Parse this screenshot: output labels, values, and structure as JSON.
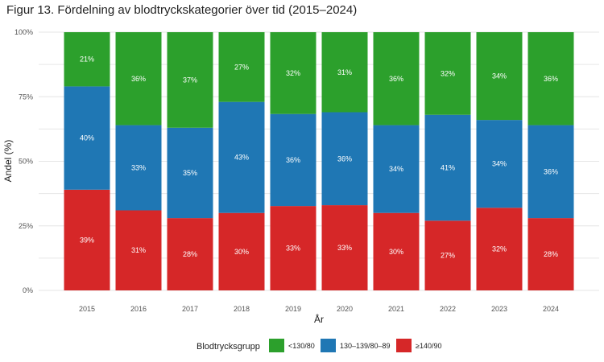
{
  "chart_data": {
    "type": "bar",
    "stacked": true,
    "title": "Figur 13. Fördelning av blodtryckskategorier över tid (2015–2024)",
    "xlabel": "År",
    "ylabel": "Andel (%)",
    "ylim": [
      0,
      100
    ],
    "y_ticks": [
      0,
      25,
      50,
      75,
      100
    ],
    "y_tick_labels": [
      "0%",
      "25%",
      "50%",
      "75%",
      "100%"
    ],
    "grid": true,
    "legend_position": "bottom",
    "legend_title": "Blodtrycksgrupp",
    "categories": [
      "2015",
      "2016",
      "2017",
      "2018",
      "2019",
      "2020",
      "2021",
      "2022",
      "2023",
      "2024"
    ],
    "series": [
      {
        "name": "≥140/90",
        "color": "#d62728",
        "values": [
          39,
          31,
          28,
          30,
          33,
          33,
          30,
          27,
          32,
          28
        ],
        "labels": [
          "39%",
          "31%",
          "28%",
          "30%",
          "33%",
          "33%",
          "30%",
          "27%",
          "32%",
          "28%"
        ]
      },
      {
        "name": "130–139/80–89",
        "color": "#1f77b4",
        "values": [
          40,
          33,
          35,
          43,
          36,
          36,
          34,
          41,
          34,
          36
        ],
        "labels": [
          "40%",
          "33%",
          "35%",
          "43%",
          "36%",
          "36%",
          "34%",
          "41%",
          "34%",
          "36%"
        ]
      },
      {
        "name": "<130/80",
        "color": "#2ca02c",
        "values": [
          21,
          36,
          37,
          27,
          32,
          31,
          36,
          32,
          34,
          36
        ],
        "labels": [
          "21%",
          "36%",
          "37%",
          "27%",
          "32%",
          "31%",
          "36%",
          "32%",
          "34%",
          "36%"
        ]
      }
    ],
    "legend_order": [
      "<130/80",
      "130–139/80–89",
      "≥140/90"
    ]
  }
}
